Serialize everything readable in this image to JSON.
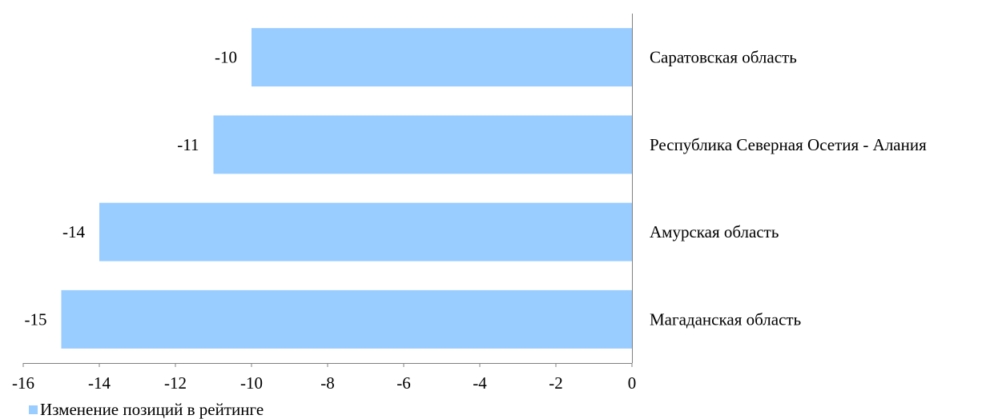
{
  "chart_data": {
    "type": "bar",
    "orientation": "horizontal",
    "title": "",
    "categories": [
      "Саратовская область",
      "Республика Северная Осетия - Алания",
      "Амурская область",
      "Магаданская область"
    ],
    "series": [
      {
        "name": "Изменение позиций в рейтинге",
        "values": [
          -10,
          -11,
          -14,
          -15
        ],
        "color": "#99ccff"
      }
    ],
    "data_labels": [
      "-10",
      "-11",
      "-14",
      "-15"
    ],
    "xlim": [
      -16,
      0
    ],
    "x_ticks": [
      "-16",
      "-14",
      "-12",
      "-10",
      "-8",
      "-6",
      "-4",
      "-2",
      "0"
    ],
    "grid": false,
    "category_label_position": "right of axis",
    "legend_position": "bottom-left"
  }
}
